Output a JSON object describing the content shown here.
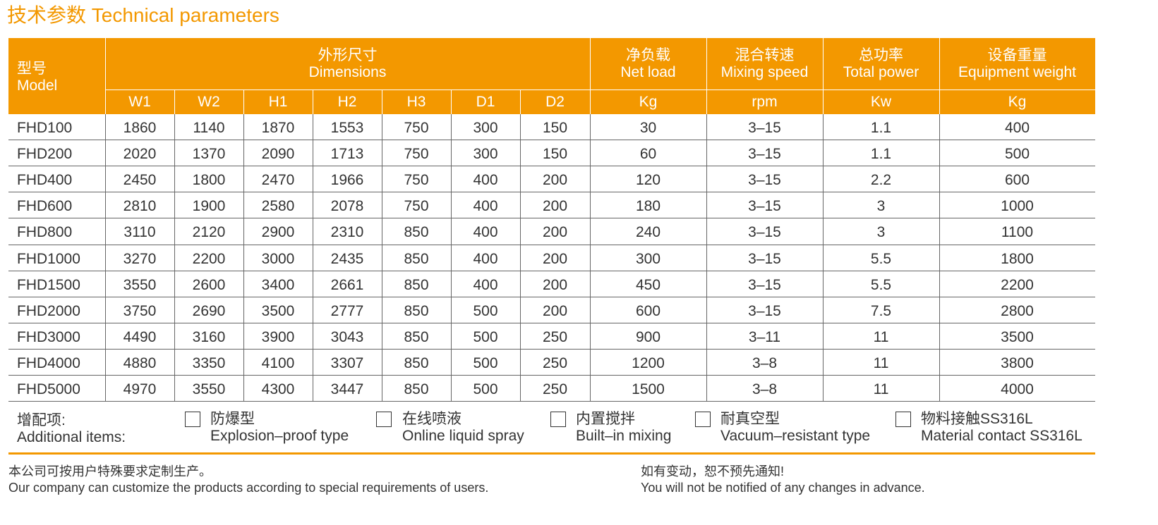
{
  "title": "技术参数 Technical parameters",
  "table": {
    "columns": [
      {
        "zh": "型号",
        "en": "Model"
      },
      {
        "zh": "外形尺寸",
        "en": "Dimensions"
      },
      {
        "zh": "净负载",
        "en": "Net load"
      },
      {
        "zh": "混合转速",
        "en": "Mixing speed"
      },
      {
        "zh": "总功率",
        "en": "Total power"
      },
      {
        "zh": "设备重量",
        "en": "Equipment weight"
      }
    ],
    "subheaders": [
      "W1",
      "W2",
      "H1",
      "H2",
      "H3",
      "D1",
      "D2",
      "Kg",
      "rpm",
      "Kw",
      "Kg"
    ],
    "rows": [
      [
        "FHD100",
        1860,
        1140,
        1870,
        1553,
        750,
        300,
        150,
        30,
        "3–15",
        1.1,
        400
      ],
      [
        "FHD200",
        2020,
        1370,
        2090,
        1713,
        750,
        300,
        150,
        60,
        "3–15",
        1.1,
        500
      ],
      [
        "FHD400",
        2450,
        1800,
        2470,
        1966,
        750,
        400,
        200,
        120,
        "3–15",
        2.2,
        600
      ],
      [
        "FHD600",
        2810,
        1900,
        2580,
        2078,
        750,
        400,
        200,
        180,
        "3–15",
        3,
        1000
      ],
      [
        "FHD800",
        3110,
        2120,
        2900,
        2310,
        850,
        400,
        200,
        240,
        "3–15",
        3,
        1100
      ],
      [
        "FHD1000",
        3270,
        2200,
        3000,
        2435,
        850,
        400,
        200,
        300,
        "3–15",
        5.5,
        1800
      ],
      [
        "FHD1500",
        3550,
        2600,
        3400,
        2661,
        850,
        400,
        200,
        450,
        "3–15",
        5.5,
        2200
      ],
      [
        "FHD2000",
        3750,
        2690,
        3500,
        2777,
        850,
        500,
        200,
        600,
        "3–15",
        7.5,
        2800
      ],
      [
        "FHD3000",
        4490,
        3160,
        3900,
        3043,
        850,
        500,
        250,
        900,
        "3–11",
        11,
        3500
      ],
      [
        "FHD4000",
        4880,
        3350,
        4100,
        3307,
        850,
        500,
        250,
        1200,
        "3–8",
        11,
        3800
      ],
      [
        "FHD5000",
        4970,
        3550,
        4300,
        3447,
        850,
        500,
        250,
        1500,
        "3–8",
        11,
        4000
      ]
    ]
  },
  "additional": {
    "label": {
      "zh": "增配项:",
      "en": "Additional items:"
    },
    "options": [
      {
        "zh": "防爆型",
        "en": "Explosion–proof type"
      },
      {
        "zh": "在线喷液",
        "en": "Online liquid spray"
      },
      {
        "zh": "内置搅拌",
        "en": "Built–in mixing"
      },
      {
        "zh": "耐真空型",
        "en": "Vacuum–resistant type"
      },
      {
        "zh": "物料接触SS316L",
        "en": "Material contact SS316L"
      }
    ]
  },
  "footer": {
    "left": {
      "zh": "本公司可按用户特殊要求定制生产。",
      "en": "Our company can customize the products according to special requirements of users."
    },
    "right": {
      "zh": "如有变动，恕不预先通知!",
      "en": "You will not be notified of any changes in advance."
    }
  }
}
